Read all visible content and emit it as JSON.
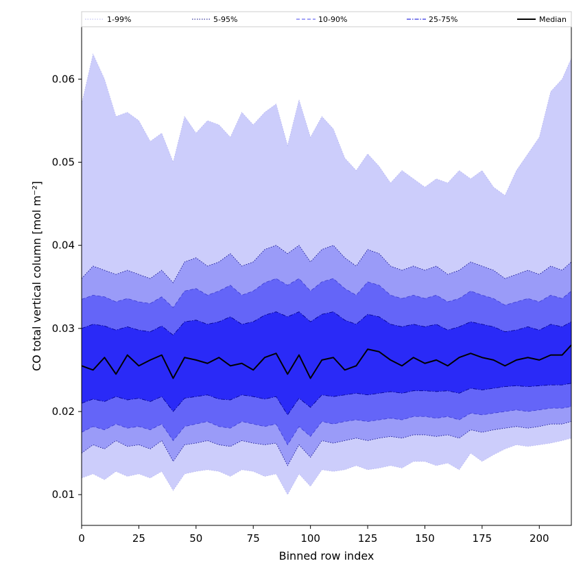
{
  "chart_data": {
    "type": "area",
    "title": "",
    "xlabel": "Binned row index",
    "ylabel": "CO total vertical column [mol m⁻²]",
    "xlim": [
      0,
      214
    ],
    "ylim": [
      0.0063,
      0.0663
    ],
    "grid": false,
    "legend_placement": "top, horizontal strip above the plot",
    "x_ticks": [
      {
        "value": 0,
        "label": "0"
      },
      {
        "value": 25,
        "label": "25"
      },
      {
        "value": 50,
        "label": "50"
      },
      {
        "value": 75,
        "label": "75"
      },
      {
        "value": 100,
        "label": "100"
      },
      {
        "value": 125,
        "label": "125"
      },
      {
        "value": 150,
        "label": "150"
      },
      {
        "value": 175,
        "label": "175"
      },
      {
        "value": 200,
        "label": "200"
      }
    ],
    "y_ticks": [
      {
        "value": 0.01,
        "label": "0.01"
      },
      {
        "value": 0.02,
        "label": "0.02"
      },
      {
        "value": 0.03,
        "label": "0.03"
      },
      {
        "value": 0.04,
        "label": "0.04"
      },
      {
        "value": 0.05,
        "label": "0.05"
      },
      {
        "value": 0.06,
        "label": "0.06"
      }
    ],
    "x": [
      0,
      5,
      10,
      15,
      20,
      25,
      30,
      35,
      40,
      45,
      50,
      55,
      60,
      65,
      70,
      75,
      80,
      85,
      90,
      95,
      100,
      105,
      110,
      115,
      120,
      125,
      130,
      135,
      140,
      145,
      150,
      155,
      160,
      165,
      170,
      175,
      180,
      185,
      190,
      195,
      200,
      205,
      210,
      214
    ],
    "bands": [
      {
        "name": "1-99%",
        "color": "#cccdfb",
        "line_color": "#b3b3f0",
        "line_style": "dotted",
        "lower": [
          0.012,
          0.0125,
          0.0118,
          0.0128,
          0.0122,
          0.0125,
          0.012,
          0.0128,
          0.0105,
          0.0125,
          0.0128,
          0.013,
          0.0128,
          0.0122,
          0.013,
          0.0128,
          0.0122,
          0.0125,
          0.01,
          0.0125,
          0.011,
          0.013,
          0.0128,
          0.013,
          0.0135,
          0.013,
          0.0132,
          0.0135,
          0.0132,
          0.014,
          0.014,
          0.0135,
          0.0138,
          0.013,
          0.015,
          0.014,
          0.0148,
          0.0155,
          0.016,
          0.0158,
          0.016,
          0.0162,
          0.0165,
          0.0168
        ],
        "upper": [
          0.057,
          0.063,
          0.06,
          0.0555,
          0.056,
          0.055,
          0.0525,
          0.0535,
          0.05,
          0.0555,
          0.0535,
          0.055,
          0.0545,
          0.053,
          0.056,
          0.0545,
          0.056,
          0.057,
          0.052,
          0.0575,
          0.053,
          0.0555,
          0.054,
          0.0505,
          0.049,
          0.051,
          0.0495,
          0.0475,
          0.049,
          0.048,
          0.047,
          0.048,
          0.0475,
          0.049,
          0.048,
          0.049,
          0.047,
          0.046,
          0.049,
          0.051,
          0.053,
          0.0585,
          0.06,
          0.0625
        ]
      },
      {
        "name": "5-95%",
        "color": "#9a9bf8",
        "line_color": "#000080",
        "line_style": "dotted",
        "lower": [
          0.015,
          0.016,
          0.0155,
          0.0165,
          0.0158,
          0.016,
          0.0155,
          0.0165,
          0.014,
          0.016,
          0.0162,
          0.0165,
          0.016,
          0.0158,
          0.0165,
          0.0162,
          0.016,
          0.0162,
          0.0135,
          0.016,
          0.0145,
          0.0165,
          0.0162,
          0.0165,
          0.0168,
          0.0165,
          0.0168,
          0.017,
          0.0168,
          0.0172,
          0.0172,
          0.017,
          0.0172,
          0.0168,
          0.0178,
          0.0175,
          0.0178,
          0.018,
          0.0182,
          0.018,
          0.0182,
          0.0185,
          0.0185,
          0.0188
        ],
        "upper": [
          0.036,
          0.0375,
          0.037,
          0.0365,
          0.037,
          0.0365,
          0.036,
          0.037,
          0.0355,
          0.038,
          0.0385,
          0.0375,
          0.038,
          0.039,
          0.0375,
          0.038,
          0.0395,
          0.04,
          0.039,
          0.04,
          0.038,
          0.0395,
          0.04,
          0.0385,
          0.0375,
          0.0395,
          0.039,
          0.0375,
          0.037,
          0.0375,
          0.037,
          0.0375,
          0.0365,
          0.037,
          0.038,
          0.0375,
          0.037,
          0.036,
          0.0365,
          0.037,
          0.0365,
          0.0375,
          0.037,
          0.038
        ]
      },
      {
        "name": "10-90%",
        "color": "#6465f8",
        "line_color": "#3c3cd0",
        "line_style": "dashed",
        "lower": [
          0.0175,
          0.0182,
          0.0178,
          0.0185,
          0.018,
          0.0182,
          0.0178,
          0.0185,
          0.0165,
          0.0182,
          0.0185,
          0.0188,
          0.0182,
          0.018,
          0.0188,
          0.0185,
          0.0182,
          0.0185,
          0.016,
          0.0182,
          0.017,
          0.0188,
          0.0185,
          0.0188,
          0.019,
          0.0188,
          0.019,
          0.0192,
          0.019,
          0.0194,
          0.0194,
          0.0192,
          0.0194,
          0.019,
          0.0198,
          0.0196,
          0.0198,
          0.02,
          0.0202,
          0.02,
          0.0202,
          0.0204,
          0.0204,
          0.0206
        ],
        "upper": [
          0.0335,
          0.034,
          0.0338,
          0.0332,
          0.0336,
          0.0332,
          0.033,
          0.0338,
          0.0325,
          0.0345,
          0.0348,
          0.034,
          0.0345,
          0.0352,
          0.034,
          0.0345,
          0.0355,
          0.036,
          0.0352,
          0.036,
          0.0345,
          0.0356,
          0.036,
          0.0348,
          0.034,
          0.0356,
          0.0352,
          0.034,
          0.0336,
          0.034,
          0.0336,
          0.034,
          0.0332,
          0.0336,
          0.0345,
          0.034,
          0.0336,
          0.0328,
          0.0332,
          0.0336,
          0.0332,
          0.034,
          0.0336,
          0.0345
        ]
      },
      {
        "name": "25-75%",
        "color": "#2a2af7",
        "line_color": "#00008b",
        "line_style": "dashdot",
        "lower": [
          0.021,
          0.0215,
          0.0212,
          0.0218,
          0.0214,
          0.0216,
          0.0212,
          0.0218,
          0.02,
          0.0216,
          0.0218,
          0.022,
          0.0215,
          0.0214,
          0.022,
          0.0218,
          0.0215,
          0.0218,
          0.0196,
          0.0216,
          0.0205,
          0.022,
          0.0218,
          0.022,
          0.0222,
          0.022,
          0.0222,
          0.0224,
          0.0222,
          0.0225,
          0.0225,
          0.0224,
          0.0225,
          0.0222,
          0.0228,
          0.0226,
          0.0228,
          0.023,
          0.0231,
          0.023,
          0.0231,
          0.0232,
          0.0232,
          0.0234
        ],
        "upper": [
          0.03,
          0.0305,
          0.0303,
          0.0298,
          0.0302,
          0.0298,
          0.0296,
          0.0303,
          0.0292,
          0.0308,
          0.031,
          0.0305,
          0.0308,
          0.0314,
          0.0305,
          0.0308,
          0.0316,
          0.032,
          0.0314,
          0.032,
          0.0308,
          0.0317,
          0.032,
          0.031,
          0.0305,
          0.0317,
          0.0314,
          0.0305,
          0.0302,
          0.0305,
          0.0302,
          0.0305,
          0.0298,
          0.0302,
          0.0308,
          0.0305,
          0.0302,
          0.0296,
          0.0298,
          0.0302,
          0.0298,
          0.0305,
          0.0302,
          0.0308
        ]
      }
    ],
    "series": [
      {
        "name": "Median",
        "color": "#000000",
        "y": [
          0.0255,
          0.025,
          0.0265,
          0.0245,
          0.0268,
          0.0255,
          0.0262,
          0.0268,
          0.024,
          0.0265,
          0.0262,
          0.0258,
          0.0265,
          0.0255,
          0.0258,
          0.025,
          0.0265,
          0.027,
          0.0245,
          0.0268,
          0.024,
          0.0262,
          0.0265,
          0.025,
          0.0255,
          0.0275,
          0.0272,
          0.0262,
          0.0255,
          0.0265,
          0.0258,
          0.0262,
          0.0255,
          0.0265,
          0.027,
          0.0265,
          0.0262,
          0.0255,
          0.0262,
          0.0265,
          0.0262,
          0.0268,
          0.0268,
          0.028
        ]
      }
    ],
    "legend": [
      {
        "label": "1-99%",
        "color": "#b3b3f0",
        "style": "dotted",
        "width": 1
      },
      {
        "label": "5-95%",
        "color": "#000080",
        "style": "dotted",
        "width": 1
      },
      {
        "label": "10-90%",
        "color": "#6a6af0",
        "style": "dashed",
        "width": 1.2
      },
      {
        "label": "25-75%",
        "color": "#3030e0",
        "style": "dashdot",
        "width": 1.2
      },
      {
        "label": "Median",
        "color": "#000000",
        "style": "solid",
        "width": 2
      }
    ]
  }
}
